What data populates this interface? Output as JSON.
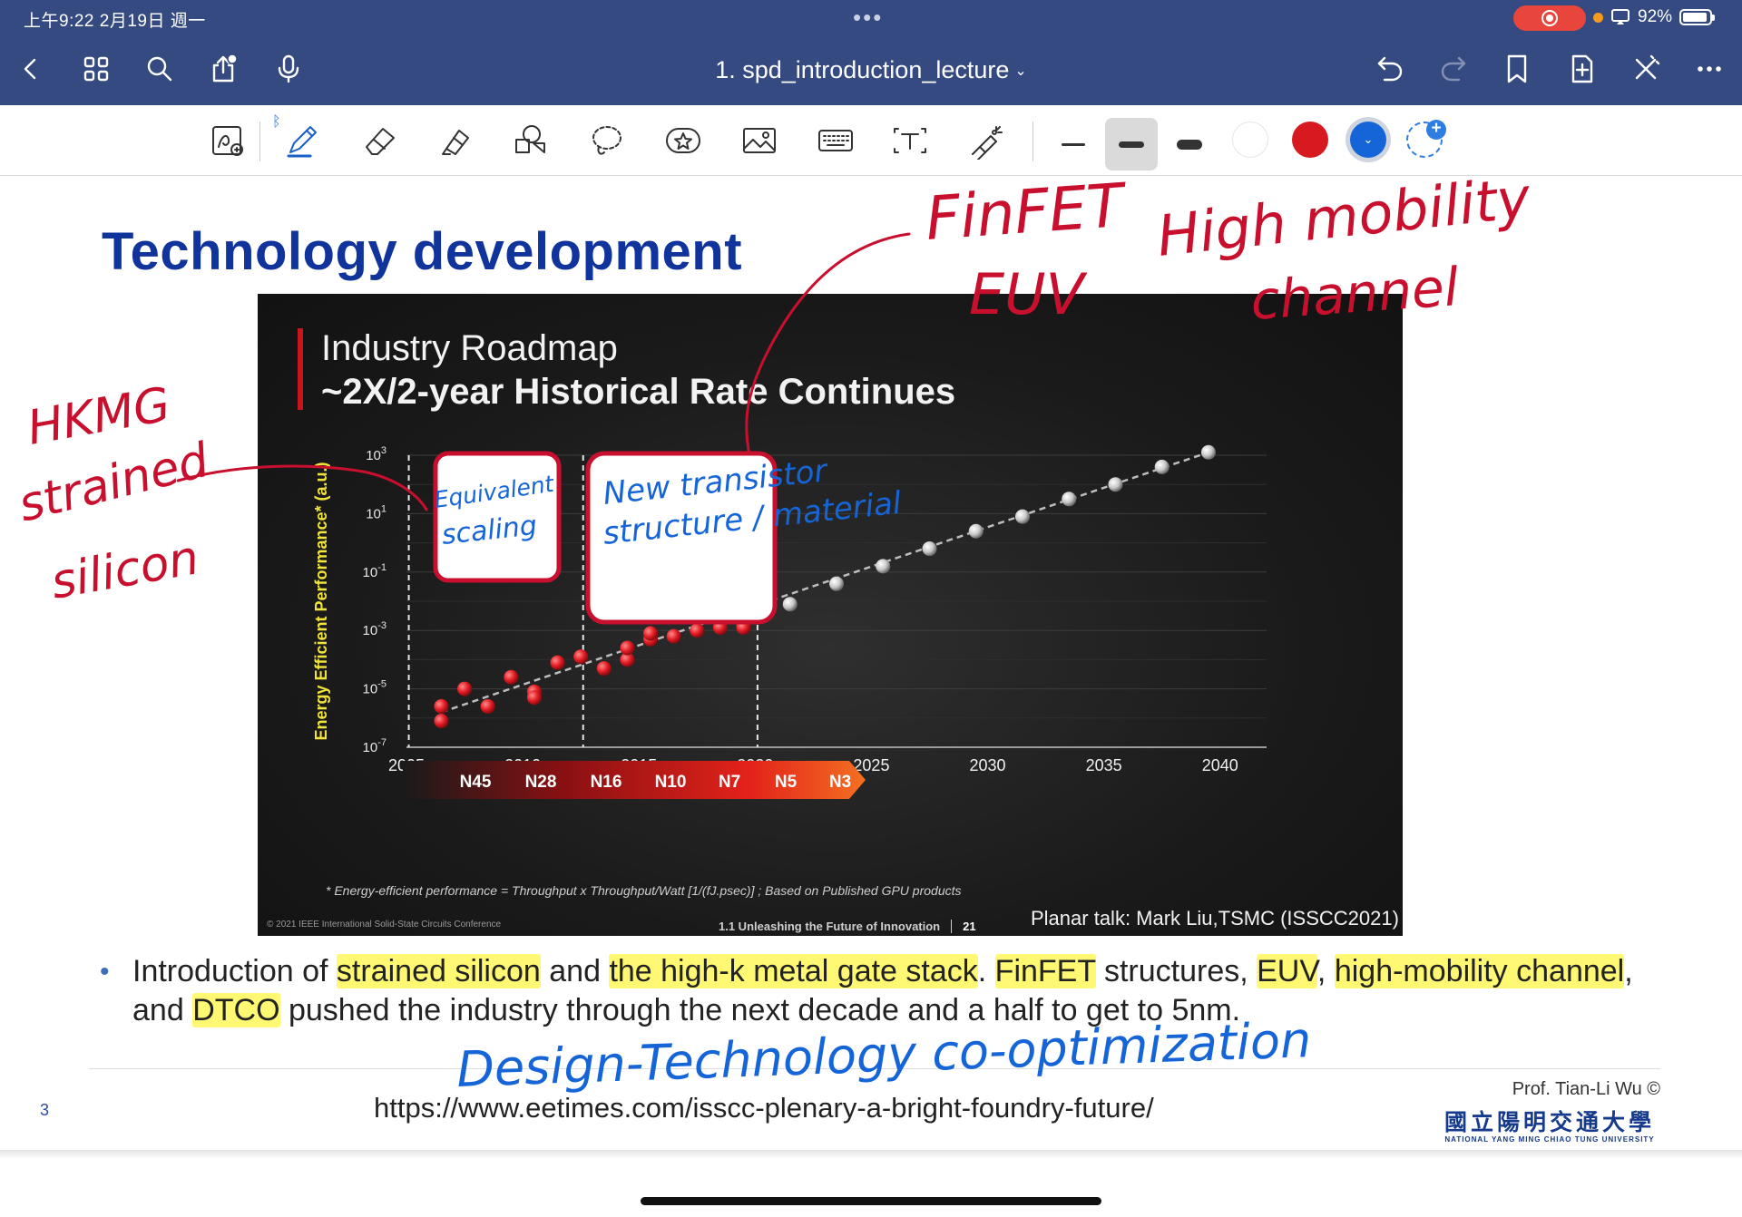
{
  "status_bar": {
    "time_date": "上午9:22  2月19日 週一",
    "battery": "92%",
    "battery_level": 0.92
  },
  "nav": {
    "title": "1. spd_introduction_lecture",
    "title_chevron": "⌄"
  },
  "toolbar": {
    "tools": [
      "lasso-zoom-icon",
      "pen-icon",
      "eraser-icon",
      "highlighter-icon",
      "shapes-icon",
      "lasso-icon",
      "sticker-icon",
      "image-icon",
      "keyboard-icon",
      "text-box-icon",
      "laser-pointer-icon"
    ],
    "bluetooth": "ᛒ",
    "stroke_widths": [
      "thin",
      "medium",
      "thick"
    ],
    "selected_stroke": "medium",
    "colors": [
      "#ffffff",
      "#d71920",
      "#1565d8"
    ],
    "selected_color": "#1565d8",
    "selected_marker": "⌄"
  },
  "slide": {
    "title": "Technology development",
    "panel_title": "Industry Roadmap",
    "panel_subtitle": "~2X/2-year Historical Rate Continues",
    "footnote": "* Energy-efficient performance = Throughput x Throughput/Watt [1/(fJ.psec)] ; Based on Published GPU products",
    "ieee_note": "© 2021 IEEE International Solid-State Circuits Conference",
    "session_note": "1.1 Unleashing the Future of Innovation",
    "session_page": "21",
    "source_note": "Planar talk: Mark Liu,TSMC (ISSCC2021)",
    "bullet_parts": [
      {
        "t": "Introduction of ",
        "hl": false
      },
      {
        "t": "strained silicon",
        "hl": true
      },
      {
        "t": " and ",
        "hl": false
      },
      {
        "t": "the high-k metal gate stack",
        "hl": true
      },
      {
        "t": ". ",
        "hl": false
      },
      {
        "t": "FinFET",
        "hl": true
      },
      {
        "t": " structures, ",
        "hl": false
      },
      {
        "t": "EUV",
        "hl": true
      },
      {
        "t": ", ",
        "hl": false
      },
      {
        "t": "high-mobility channel",
        "hl": true
      },
      {
        "t": ", and ",
        "hl": false
      },
      {
        "t": "DTCO",
        "hl": true
      },
      {
        "t": " pushed the industry through the next decade and a half to get to 5nm.",
        "hl": false
      }
    ],
    "url": "https://www.eetimes.com/isscc-plenary-a-bright-foundry-future/",
    "page_number": "3",
    "author": "Prof. Tian-Li Wu ©",
    "university_zh": "國立陽明交通大學",
    "university_en": "NATIONAL YANG MING CHIAO TUNG UNIVERSITY"
  },
  "chart_data": {
    "type": "scatter",
    "title": "Industry Roadmap",
    "subtitle": "~2X/2-year Historical Rate Continues",
    "xlabel": "",
    "ylabel": "Energy Efficient Performance* (a.u.)",
    "xlim": [
      2005,
      2042
    ],
    "ylim_log10": [
      -7,
      3
    ],
    "x_ticks": [
      "2005",
      "2010",
      "2015",
      "2020",
      "2025",
      "2030",
      "2035",
      "2040"
    ],
    "y_ticks": [
      {
        "base": "10",
        "exp": "3",
        "v": 3
      },
      {
        "base": "10",
        "exp": "1",
        "v": 1
      },
      {
        "base": "10",
        "exp": "-1",
        "v": -1
      },
      {
        "base": "10",
        "exp": "-3",
        "v": -3
      },
      {
        "base": "10",
        "exp": "-5",
        "v": -5
      },
      {
        "base": "10",
        "exp": "-7",
        "v": -7
      }
    ],
    "vertical_dashed_lines": [
      2005.1,
      2012.6,
      2020.1
    ],
    "grid": true,
    "nodes": [
      "N45",
      "N28",
      "N16",
      "N10",
      "N7",
      "N5",
      "N3"
    ],
    "series": [
      {
        "color": "#e31b23",
        "points": [
          [
            2006.5,
            -5.6
          ],
          [
            2006.5,
            -6.1
          ],
          [
            2007.5,
            -5.0
          ],
          [
            2008.5,
            -5.6
          ],
          [
            2009.5,
            -4.6
          ],
          [
            2010.5,
            -5.1
          ],
          [
            2010.5,
            -5.3
          ],
          [
            2011.5,
            -4.1
          ],
          [
            2012.5,
            -3.9
          ],
          [
            2013.5,
            -4.3
          ],
          [
            2014.5,
            -4.0
          ],
          [
            2014.5,
            -3.6
          ],
          [
            2015.5,
            -3.3
          ],
          [
            2015.5,
            -3.1
          ],
          [
            2016.5,
            -3.2
          ],
          [
            2017.5,
            -3.0
          ],
          [
            2018.5,
            -2.9
          ],
          [
            2019.5,
            -2.8
          ],
          [
            2019.5,
            -2.5
          ],
          [
            2019.5,
            -2.9
          ]
        ]
      },
      {
        "color": "#c8c8c8",
        "points": [
          [
            2021.5,
            -2.1
          ],
          [
            2023.5,
            -1.4
          ],
          [
            2025.5,
            -0.8
          ],
          [
            2027.5,
            -0.2
          ],
          [
            2029.5,
            0.4
          ],
          [
            2031.5,
            0.9
          ],
          [
            2033.5,
            1.5
          ],
          [
            2035.5,
            2.0
          ],
          [
            2037.5,
            2.6
          ],
          [
            2039.5,
            3.1
          ]
        ]
      }
    ],
    "trend": [
      [
        2006.5,
        -5.8
      ],
      [
        2039.5,
        3.1
      ]
    ]
  },
  "annotations": {
    "red": [
      "HKMG",
      "strained",
      "silicon",
      "FinFET",
      "EUV",
      "High mobility",
      "channel"
    ],
    "blue": [
      "Equivalent",
      "scaling",
      "New transistor",
      "structure / material",
      "Design-Technology co-optimization"
    ],
    "boxes": [
      {
        "label": "equivalent-scaling-box"
      },
      {
        "label": "new-transistor-box"
      }
    ]
  }
}
